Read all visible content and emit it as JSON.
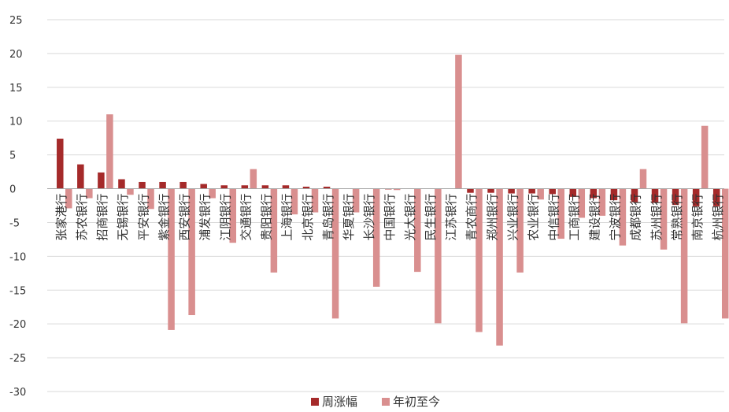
{
  "colors": {
    "weekly": "#a52a2a",
    "ytd": "#d98f8f",
    "grid": "#d9d9d9",
    "axis": "#a6a6a6",
    "text": "#333333"
  },
  "chart_data": {
    "type": "bar",
    "ylim": [
      -30,
      25
    ],
    "yticks": [
      25,
      20,
      15,
      10,
      5,
      0,
      -5,
      -10,
      -15,
      -20,
      -25,
      -30
    ],
    "grid": true,
    "legend_position": "bottom-center",
    "categories": [
      "张家港行",
      "苏农银行",
      "招商银行",
      "无锡银行",
      "平安银行",
      "紫金银行",
      "西安银行",
      "浦发银行",
      "江阴银行",
      "交通银行",
      "贵阳银行",
      "上海银行",
      "北京银行",
      "青岛银行",
      "华夏银行",
      "长沙银行",
      "中国银行",
      "光大银行",
      "民生银行",
      "江苏银行",
      "青农商行",
      "郑州银行",
      "兴业银行",
      "农业银行",
      "中信银行",
      "工商银行",
      "建设银行",
      "宁波银行",
      "成都银行",
      "苏州银行",
      "常熟银行",
      "南京银行",
      "杭州银行"
    ],
    "series": [
      {
        "name": "周涨幅",
        "values": [
          7.4,
          3.6,
          2.4,
          1.4,
          1.0,
          1.0,
          1.0,
          0.7,
          0.5,
          0.5,
          0.5,
          0.5,
          0.3,
          0.3,
          0.0,
          0.0,
          -0.1,
          0.0,
          0.0,
          0.0,
          -0.6,
          -0.6,
          -0.7,
          -0.7,
          -0.8,
          -1.2,
          -1.4,
          -1.7,
          -2.0,
          -2.1,
          -2.4,
          -2.6,
          -2.6
        ]
      },
      {
        "name": "年初至今",
        "values": [
          -2.9,
          -1.4,
          11.0,
          -0.9,
          -3.0,
          -20.9,
          -18.7,
          -1.4,
          -8.0,
          2.9,
          -12.4,
          -3.8,
          -3.5,
          -19.2,
          -3.5,
          -14.5,
          -0.2,
          -12.3,
          -19.9,
          19.8,
          -21.2,
          -23.2,
          -12.4,
          -1.6,
          -7.4,
          -4.3,
          -4.0,
          -8.4,
          2.9,
          -9.0,
          -19.9,
          9.3,
          -19.2
        ]
      }
    ]
  }
}
